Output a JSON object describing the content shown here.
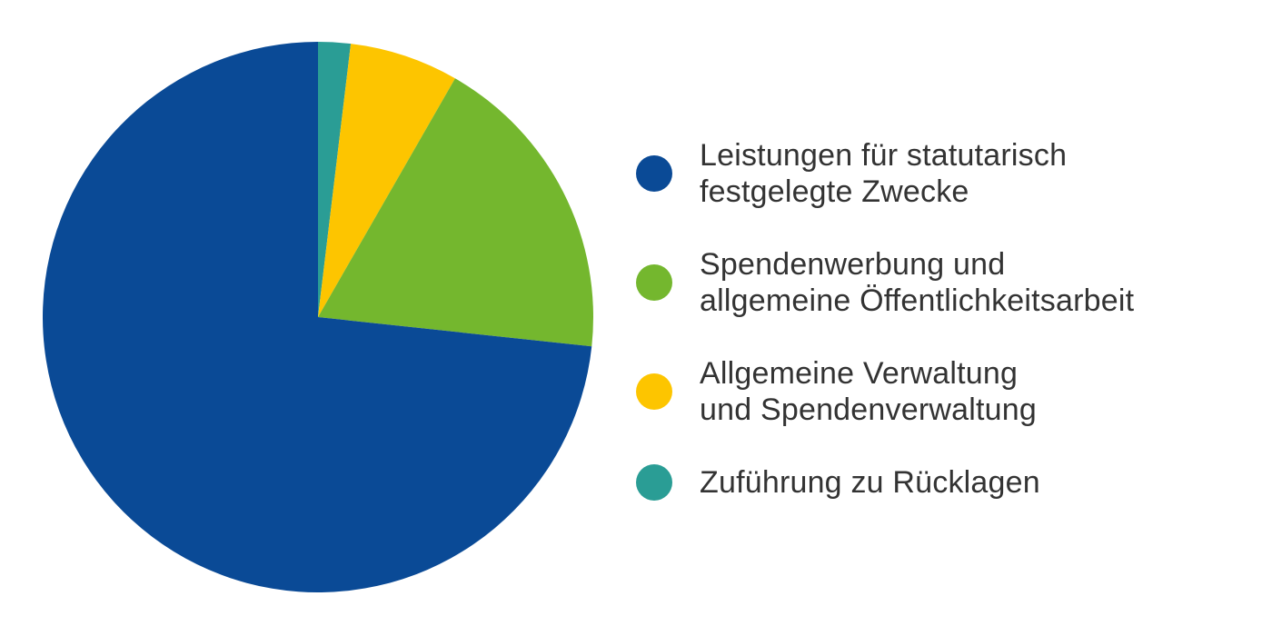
{
  "chart_data": {
    "type": "pie",
    "title": "",
    "legend_position": "right",
    "values_are": "percent (estimated from slice angles, no numeric labels shown)",
    "start_angle_deg": 0,
    "draw_order": "legend order sweeps counterclockwise from 12 o'clock (i.e. reversed order clockwise)",
    "slices": [
      {
        "label": "Leistungen für statutarisch festgelegte Zwecke",
        "value": 73.3,
        "color": "#0a4a96"
      },
      {
        "label": "Spendenwerbung und allgemeine Öffentlichkeitsarbeit",
        "value": 18.4,
        "color": "#74b72e"
      },
      {
        "label": "Allgemeine Verwaltung und Spendenverwaltung",
        "value": 6.4,
        "color": "#fdc500"
      },
      {
        "label": "Zuführung zu Rücklagen",
        "value": 1.9,
        "color": "#2a9d95"
      }
    ]
  },
  "legend": {
    "text_color": "#333333",
    "items": [
      {
        "color": "#0a4a96",
        "lines": [
          "Leistungen für statutarisch",
          "festgelegte Zwecke"
        ]
      },
      {
        "color": "#74b72e",
        "lines": [
          "Spendenwerbung und",
          "allgemeine Öffentlichkeitsarbeit"
        ]
      },
      {
        "color": "#fdc500",
        "lines": [
          "Allgemeine Verwaltung",
          "und Spendenverwaltung"
        ]
      },
      {
        "color": "#2a9d95",
        "lines": [
          "Zuführung zu Rücklagen"
        ]
      }
    ]
  }
}
